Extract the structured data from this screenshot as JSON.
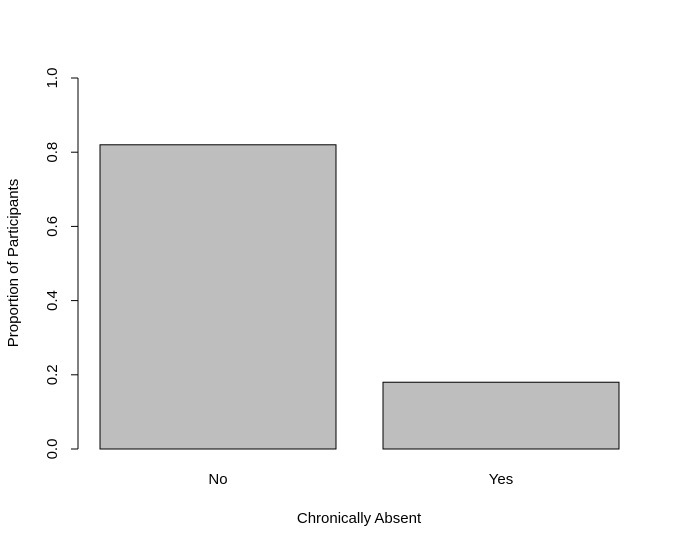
{
  "chart_data": {
    "type": "bar",
    "categories": [
      "No",
      "Yes"
    ],
    "values": [
      0.82,
      0.18
    ],
    "title": "",
    "xlabel": "Chronically Absent",
    "ylabel": "Proportion of Participants",
    "ylim": [
      0,
      1
    ],
    "yticks": [
      "0.0",
      "0.2",
      "0.4",
      "0.6",
      "0.8",
      "1.0"
    ],
    "grid": false,
    "legend": "none",
    "colors": {
      "bar_fill": "#bebebe",
      "bar_stroke": "#000000",
      "axis": "#000000"
    }
  }
}
